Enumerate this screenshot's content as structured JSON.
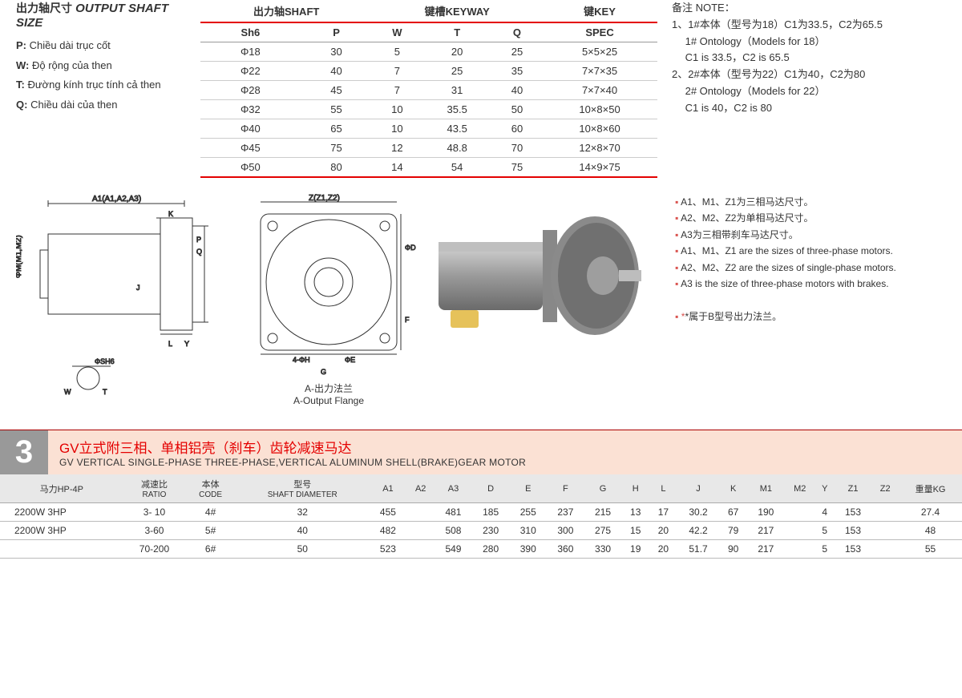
{
  "shaft_title": {
    "cn": "出力轴尺寸",
    "en": "OUTPUT SHAFT SIZE"
  },
  "legend": {
    "p": {
      "key": "P:",
      "txt": "Chiều dài trục cốt"
    },
    "w": {
      "key": "W:",
      "txt": "Độ rộng của then"
    },
    "t": {
      "key": "T:",
      "txt": "Đường kính trục tính cả then"
    },
    "q": {
      "key": "Q:",
      "txt": "Chiều dài của then"
    }
  },
  "tbl1": {
    "grp_headers": [
      "出力轴SHAFT",
      "键槽KEYWAY",
      "键KEY"
    ],
    "sub_headers": [
      "Sh6",
      "P",
      "W",
      "T",
      "Q",
      "SPEC"
    ],
    "rows": [
      [
        "Φ18",
        "30",
        "5",
        "20",
        "25",
        "5×5×25"
      ],
      [
        "Φ22",
        "40",
        "7",
        "25",
        "35",
        "7×7×35"
      ],
      [
        "Φ28",
        "45",
        "7",
        "31",
        "40",
        "7×7×40"
      ],
      [
        "Φ32",
        "55",
        "10",
        "35.5",
        "50",
        "10×8×50"
      ],
      [
        "Φ40",
        "65",
        "10",
        "43.5",
        "60",
        "10×8×60"
      ],
      [
        "Φ45",
        "75",
        "12",
        "48.8",
        "70",
        "12×8×70"
      ],
      [
        "Φ50",
        "80",
        "14",
        "54",
        "75",
        "14×9×75"
      ]
    ]
  },
  "notes": {
    "title": "备注 NOTE：",
    "lines": [
      "1、1#本体（型号为18）C1为33.5，C2为65.5",
      "　 1# Ontology（Models for 18）",
      "　 C1 is 33.5，C2 is 65.5",
      "2、2#本体（型号为22）C1为40，C2为80",
      "　 2# Ontology（Models for 22）",
      "　 C1 is 40，C2 is 80"
    ]
  },
  "diag_labels": {
    "a1": "A1(A1,A2,A3)",
    "m": "ΦM(M1,M2)",
    "k": "K",
    "p": "P",
    "q": "Q",
    "j": "J",
    "l": "L",
    "y": "Y",
    "sh": "ΦSH6",
    "w": "W",
    "t": "T",
    "z": "Z(Z1,Z2)",
    "d": "ΦD",
    "e": "ΦE",
    "f": "F",
    "g": "G",
    "h": "4-ΦH",
    "cap_cn": "A-出力法兰",
    "cap_en": "A-Output Flange"
  },
  "side_notes": [
    "A1、M1、Z1为三相马达尺寸。",
    "A2、M2、Z2为单相马达尺寸。",
    "A3为三相带刹车马达尺寸。",
    "A1、M1、Z1 are the sizes of three-phase motors.",
    "A2、M2、Z2 are the sizes of single-phase motors.",
    "A3 is the size of three-phase motors with brakes."
  ],
  "side_note_star": "*属于B型号出力法兰。",
  "section3": {
    "num": "3",
    "cn": "GV立式附三相、单相铝壳（刹车）齿轮减速马达",
    "en": "GV VERTICAL SINGLE-PHASE THREE-PHASE,VERTICAL ALUMINUM SHELL(BRAKE)GEAR MOTOR"
  },
  "tbl2": {
    "headers": [
      {
        "top": "马力HP-4P"
      },
      {
        "top": "减速比",
        "sub": "RATIO"
      },
      {
        "top": "本体",
        "sub": "CODE"
      },
      {
        "top": "型号",
        "sub": "SHAFT DIAMETER"
      },
      {
        "top": "A1"
      },
      {
        "top": "A2"
      },
      {
        "top": "A3"
      },
      {
        "top": "D"
      },
      {
        "top": "E"
      },
      {
        "top": "F"
      },
      {
        "top": "G"
      },
      {
        "top": "H"
      },
      {
        "top": "L"
      },
      {
        "top": "J"
      },
      {
        "top": "K"
      },
      {
        "top": "M1"
      },
      {
        "top": "M2"
      },
      {
        "top": "Y"
      },
      {
        "top": "Z1"
      },
      {
        "top": "Z2"
      },
      {
        "top": "重量KG"
      }
    ],
    "rows": [
      [
        "2200W 3HP",
        "3- 10",
        "4#",
        "32",
        "455",
        "",
        "481",
        "185",
        "255",
        "237",
        "215",
        "13",
        "17",
        "30.2",
        "67",
        "190",
        "",
        "4",
        "153",
        "",
        "27.4"
      ],
      [
        "2200W 3HP",
        "3-60",
        "5#",
        "40",
        "482",
        "",
        "508",
        "230",
        "310",
        "300",
        "275",
        "15",
        "20",
        "42.2",
        "79",
        "217",
        "",
        "5",
        "153",
        "",
        "48"
      ],
      [
        "",
        "70-200",
        "6#",
        "50",
        "523",
        "",
        "549",
        "280",
        "390",
        "360",
        "330",
        "19",
        "20",
        "51.7",
        "90",
        "217",
        "",
        "5",
        "153",
        "",
        "55"
      ]
    ]
  },
  "colors": {
    "accent": "#e40000",
    "header_bg": "#fbe1d4",
    "num_bg": "#999999"
  }
}
